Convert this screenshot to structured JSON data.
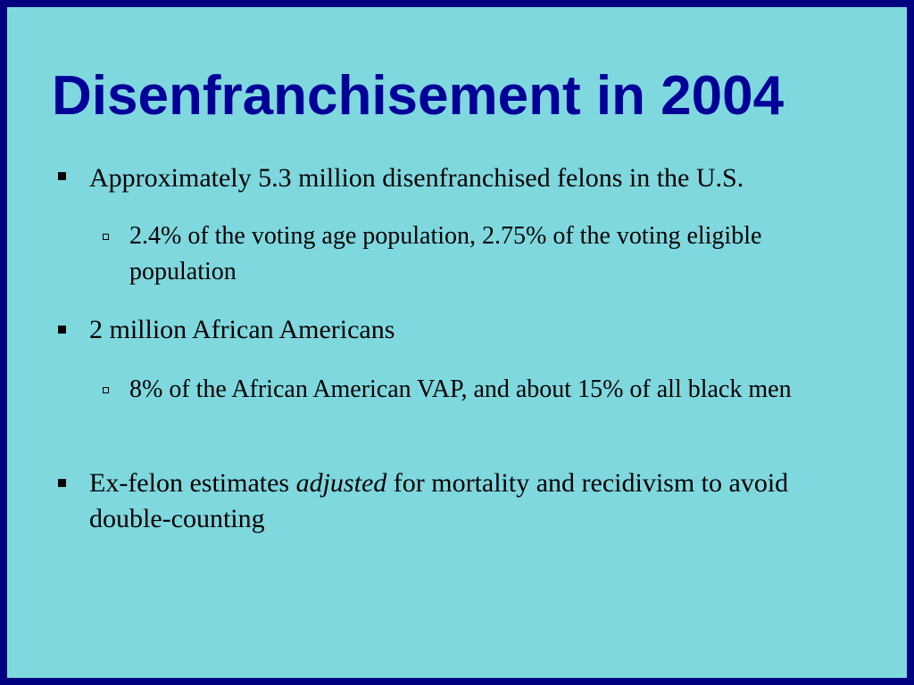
{
  "slide": {
    "title": "Disenfranchisement in 2004",
    "bullets": [
      {
        "level": 1,
        "text": "Approximately 5.3 million disenfranchised felons in the U.S."
      },
      {
        "level": 2,
        "text": "2.4% of the voting age population, 2.75% of the voting eligible population"
      },
      {
        "level": 1,
        "text": "2 million African Americans"
      },
      {
        "level": 2,
        "text": "8% of the African American VAP, and about 15% of all black men"
      },
      {
        "level": 1,
        "text_before": "Ex-felon estimates ",
        "text_emphasis": "adjusted",
        "text_after": " for mortality and recidivism to avoid double-counting"
      }
    ]
  },
  "colors": {
    "background": "#7fd8de",
    "border": "#000080",
    "title": "#000099",
    "text": "#000000"
  },
  "icons": {
    "level1_bullet": "filled-square-bullet-icon",
    "level2_bullet": "hollow-square-bullet-icon"
  }
}
